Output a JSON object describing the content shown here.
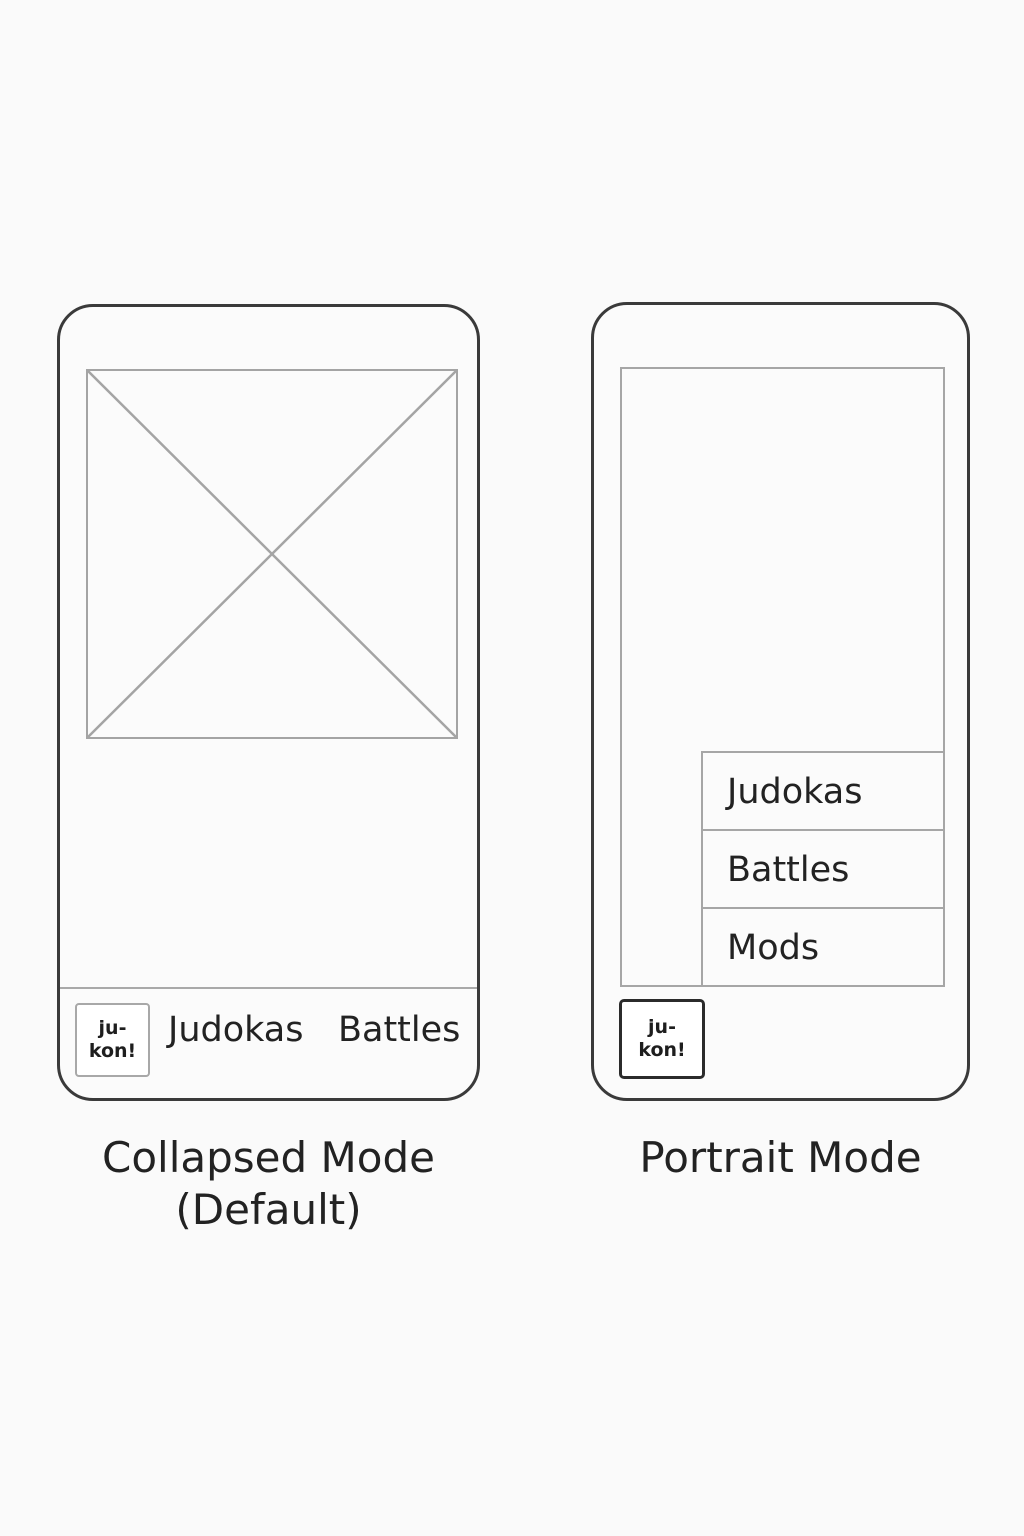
{
  "collapsed_mode": {
    "logo_text": "ju-\nkon!",
    "nav_items": [
      "Judokas",
      "Battles"
    ],
    "caption": "Collapsed Mode\n(Default)"
  },
  "portrait_mode": {
    "logo_text": "ju-\nkon!",
    "menu_items": [
      "Judokas",
      "Battles",
      "Mods"
    ],
    "caption": "Portrait Mode"
  },
  "colors": {
    "background": "#fafafa",
    "phone_outline": "#3a3a3a",
    "wireframe_line": "#a6a6a6",
    "text": "#222222"
  }
}
